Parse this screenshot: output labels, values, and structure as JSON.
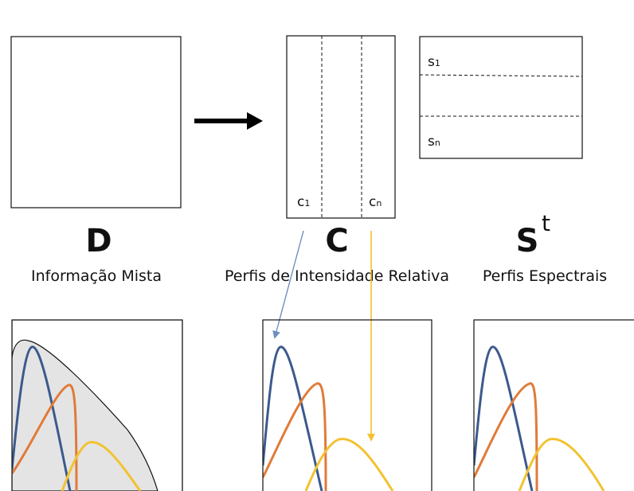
{
  "matrices": {
    "D": {
      "symbol": "D",
      "caption": "Informação Mista"
    },
    "C": {
      "symbol": "C",
      "caption": "Perfis de Intensidade Relativa",
      "col_first": "c",
      "col_first_sub": "1",
      "col_last": "c",
      "col_last_sub": "n"
    },
    "S": {
      "symbol": "S",
      "superscript": "t",
      "caption": "Perfis Espectrais",
      "row_first": "s",
      "row_first_sub": "1",
      "row_last": "s",
      "row_last_sub": "n"
    }
  },
  "colors": {
    "blue": "#3b5a8c",
    "orange": "#e07b39",
    "yellow": "#f2c230",
    "arrow_blue": "#6f8fc0",
    "arrow_yellow": "#f2c230",
    "mixture_fill": "#e4e4e4"
  }
}
